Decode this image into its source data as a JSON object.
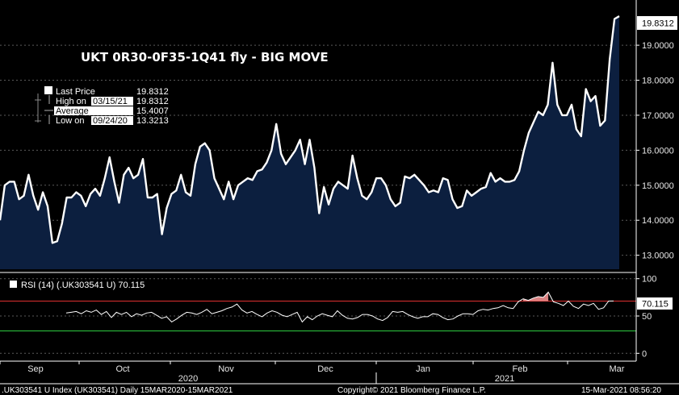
{
  "chart_data": [
    {
      "type": "area",
      "title": "UKT 0R30-0F35-1Q41 fly - BIG MOVE",
      "y_ticks": [
        "13.0000",
        "14.0000",
        "15.0000",
        "16.0000",
        "17.0000",
        "18.0000",
        "19.0000"
      ],
      "ylim": [
        12.6,
        20.2
      ],
      "last_value_label": "19.8312",
      "legend": {
        "last_price": {
          "label": "Last Price",
          "value": "19.8312"
        },
        "high": {
          "label": "High on",
          "date": "03/15/21",
          "value": "19.8312"
        },
        "average": {
          "label": "Average",
          "value": "15.4007"
        },
        "low": {
          "label": "Low on",
          "date": "09/24/20",
          "value": "13.3213"
        }
      },
      "x_month_labels": [
        "Sep",
        "Oct",
        "Nov",
        "Dec",
        "Jan",
        "Feb",
        "Mar"
      ],
      "x_year_labels": [
        "2020",
        "2021"
      ],
      "series": [
        {
          "color": "#ffffff",
          "fill": "#0c1f3f",
          "values": [
            14.0,
            15.0,
            15.1,
            15.1,
            14.6,
            14.7,
            15.3,
            14.7,
            14.3,
            14.8,
            14.4,
            13.35,
            13.4,
            13.9,
            14.65,
            14.65,
            14.8,
            14.7,
            14.4,
            14.75,
            14.9,
            14.7,
            15.2,
            15.8,
            15.1,
            14.5,
            15.3,
            15.5,
            15.2,
            15.3,
            15.75,
            14.65,
            14.65,
            14.75,
            13.6,
            14.35,
            14.75,
            14.85,
            15.3,
            14.8,
            14.7,
            15.6,
            16.1,
            16.2,
            16.0,
            15.2,
            14.9,
            14.6,
            15.1,
            14.6,
            15.0,
            15.1,
            15.2,
            15.15,
            15.4,
            15.45,
            15.65,
            16.0,
            16.75,
            15.9,
            15.6,
            15.8,
            16.0,
            16.3,
            15.6,
            16.3,
            15.5,
            14.2,
            14.95,
            14.45,
            14.9,
            15.1,
            15.0,
            14.9,
            15.85,
            15.2,
            14.7,
            14.6,
            14.8,
            15.2,
            15.2,
            15.0,
            14.6,
            14.4,
            14.5,
            15.25,
            15.2,
            15.3,
            15.15,
            15.0,
            14.8,
            14.85,
            14.8,
            15.2,
            15.15,
            14.6,
            14.35,
            14.4,
            14.85,
            14.7,
            14.8,
            14.9,
            14.95,
            15.35,
            15.1,
            15.2,
            15.1,
            15.1,
            15.15,
            15.4,
            16.0,
            16.5,
            16.8,
            17.1,
            17.0,
            17.3,
            18.5,
            17.3,
            17.0,
            17.0,
            17.3,
            16.6,
            16.4,
            17.75,
            17.4,
            17.55,
            16.7,
            16.85,
            18.6,
            19.75,
            19.83
          ]
        }
      ]
    },
    {
      "type": "line",
      "title": "RSI (14) (.UK303541 U) 70.115",
      "y_ticks": [
        "0",
        "50",
        "100"
      ],
      "ylim": [
        -4,
        104
      ],
      "last_value_label": "70.115",
      "overbought": 70,
      "oversold": 30,
      "overbought_color": "#e03030",
      "oversold_color": "#2ecc40",
      "series": [
        {
          "name": "RSI (14) (.UK303541 U) 70.115",
          "color": "#ffffff",
          "values": [
            54,
            55,
            56,
            53,
            57,
            55,
            58,
            52,
            56,
            48,
            55,
            52,
            55,
            49,
            53,
            51,
            54,
            55,
            51,
            47,
            49,
            42,
            46,
            51,
            55,
            54,
            52,
            55,
            59,
            53,
            55,
            57,
            60,
            62,
            66,
            58,
            54,
            56,
            52,
            49,
            54,
            57,
            55,
            51,
            49,
            52,
            55,
            42,
            49,
            45,
            50,
            53,
            51,
            49,
            57,
            51,
            47,
            46,
            48,
            52,
            52,
            50,
            46,
            44,
            48,
            56,
            55,
            56,
            52,
            49,
            47,
            49,
            49,
            53,
            52,
            48,
            45,
            46,
            50,
            53,
            53,
            52,
            57,
            59,
            58,
            60,
            61,
            64,
            61,
            60,
            69,
            73,
            71,
            74,
            76,
            75,
            82,
            69,
            67,
            64,
            70,
            63,
            60,
            66,
            64,
            67,
            59,
            61,
            70,
            70.115
          ]
        }
      ]
    }
  ],
  "footer": {
    "ticker": ".UK303541 U Index (UK303541)  Daily 15MAR2020-15MAR2021",
    "copyright": "Copyright© 2021 Bloomberg Finance L.P.",
    "timestamp": "15-Mar-2021 08:56:20"
  }
}
